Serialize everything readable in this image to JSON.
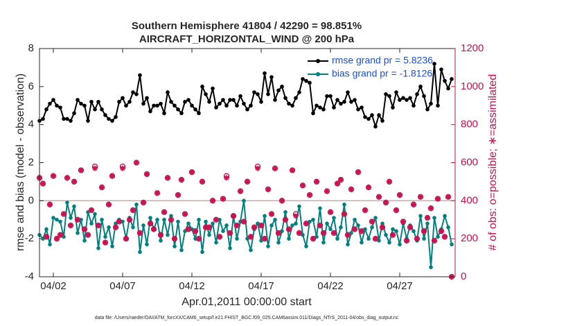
{
  "chart_data": {
    "type": "line",
    "title": "Southern Hemisphere 41804 / 42290 = 98.851%",
    "subtitle": "AIRCRAFT_HORIZONTAL_WIND @ 200 hPa",
    "xlabel": "Apr.01,2011 00:00:00 start",
    "ylabel": "rmse and bias (model - observation)",
    "y2label": "# of obs: o=possible; ∗=assimilated",
    "footnote": "data file: /Users/raeder/DAI/ATM_forcXX/CAM6_setup/f.e21.FHIST_BGC.f09_025.CAM6assim.011/Diags_NTrS_2011-04/obs_diag_output.nc",
    "legend": "upper right",
    "xlim": [
      0,
      30
    ],
    "xticks": [
      {
        "value": 1,
        "label": "04/02"
      },
      {
        "value": 6,
        "label": "04/07"
      },
      {
        "value": 11,
        "label": "04/12"
      },
      {
        "value": 16,
        "label": "04/17"
      },
      {
        "value": 21,
        "label": "04/22"
      },
      {
        "value": 26,
        "label": "04/27"
      }
    ],
    "ylim": [
      -4,
      8
    ],
    "yticks": [
      -4,
      -2,
      0,
      2,
      4,
      6,
      8
    ],
    "y2lim": [
      0,
      1200
    ],
    "y2ticks": [
      0,
      200,
      400,
      600,
      800,
      1000,
      1200
    ],
    "y2color": "#c8104f",
    "x": [
      0,
      0.25,
      0.5,
      0.75,
      1,
      1.25,
      1.5,
      1.75,
      2,
      2.25,
      2.5,
      2.75,
      3,
      3.25,
      3.5,
      3.75,
      4,
      4.25,
      4.5,
      4.75,
      5,
      5.25,
      5.5,
      5.75,
      6,
      6.25,
      6.5,
      6.75,
      7,
      7.25,
      7.5,
      7.75,
      8,
      8.25,
      8.5,
      8.75,
      9,
      9.25,
      9.5,
      9.75,
      10,
      10.25,
      10.5,
      10.75,
      11,
      11.25,
      11.5,
      11.75,
      12,
      12.25,
      12.5,
      12.75,
      13,
      13.25,
      13.5,
      13.75,
      14,
      14.25,
      14.5,
      14.75,
      15,
      15.25,
      15.5,
      15.75,
      16,
      16.25,
      16.5,
      16.75,
      17,
      17.25,
      17.5,
      17.75,
      18,
      18.25,
      18.5,
      18.75,
      19,
      19.25,
      19.5,
      19.75,
      20,
      20.25,
      20.5,
      20.75,
      21,
      21.25,
      21.5,
      21.75,
      22,
      22.25,
      22.5,
      22.75,
      23,
      23.25,
      23.5,
      23.75,
      24,
      24.25,
      24.5,
      24.75,
      25,
      25.25,
      25.5,
      25.75,
      26,
      26.25,
      26.5,
      26.75,
      27,
      27.25,
      27.5,
      27.75,
      28,
      28.25,
      28.5,
      28.75,
      29,
      29.25,
      29.5,
      29.75
    ],
    "series": [
      {
        "name": "rmse grand pr = 5.8236",
        "color": "#000000",
        "marker": "dot",
        "values": [
          4.2,
          4.3,
          4.8,
          5.1,
          5.3,
          5.0,
          4.9,
          4.3,
          4.3,
          4.2,
          4.6,
          5.3,
          5.1,
          5.0,
          4.2,
          5.2,
          4.8,
          5.2,
          4.8,
          4.5,
          4.3,
          4.2,
          4.4,
          5.2,
          5.4,
          5.0,
          5.2,
          5.7,
          5.6,
          6.6,
          5.1,
          5.4,
          4.7,
          5.0,
          5.0,
          5.1,
          4.6,
          5.7,
          5.2,
          5.0,
          4.8,
          4.6,
          5.2,
          5.3,
          5.0,
          4.8,
          4.6,
          6.0,
          5.6,
          5.2,
          5.9,
          4.9,
          5.1,
          5.3,
          5.0,
          5.3,
          5.3,
          5.0,
          5.5,
          5.1,
          4.8,
          5.0,
          5.7,
          5.6,
          5.2,
          6.7,
          5.6,
          6.5,
          5.3,
          5.8,
          6.0,
          5.4,
          5.1,
          5.0,
          5.4,
          5.7,
          6.4,
          6.3,
          6.2,
          4.6,
          5.0,
          4.9,
          4.8,
          5.5,
          5.5,
          4.9,
          5.3,
          5.1,
          5.2,
          5.7,
          5.2,
          5.3,
          4.8,
          4.9,
          4.4,
          4.3,
          4.5,
          3.9,
          4.5,
          4.2,
          5.6,
          5.5,
          4.9,
          5.7,
          5.3,
          5.4,
          5.3,
          5.4,
          5.0,
          5.6,
          6.0,
          5.5,
          4.8,
          5.1,
          7.2,
          5.0,
          6.9,
          6.3,
          5.9,
          6.4
        ]
      },
      {
        "name": "bias grand pr = -1.8126",
        "color": "#008080",
        "marker": "dot",
        "values": [
          -1.8,
          -2.0,
          -1.5,
          -2.3,
          -0.9,
          -1.0,
          -1.1,
          -1.9,
          -0.1,
          -0.9,
          -0.3,
          -1.7,
          -1.0,
          -2.1,
          -0.6,
          -1.2,
          -0.7,
          -2.5,
          -1.0,
          -1.9,
          -1.4,
          -2.4,
          -1.2,
          -1.0,
          -1.1,
          -2.0,
          -0.9,
          -1.4,
          -0.2,
          -2.7,
          -1.3,
          -2.3,
          -0.9,
          -1.5,
          -1.0,
          -2.1,
          -1.0,
          -1.8,
          -0.8,
          -2.4,
          -1.1,
          -2.6,
          -1.6,
          -1.2,
          -1.5,
          -2.0,
          -1.0,
          -2.7,
          -1.1,
          -1.8,
          -1.2,
          -2.2,
          -1.0,
          -1.6,
          -1.3,
          -2.5,
          -0.8,
          -2.0,
          -1.1,
          0.0,
          -2.0,
          -2.6,
          -1.5,
          -1.2,
          -2.1,
          -0.8,
          -2.4,
          -1.3,
          -1.0,
          -2.2,
          -1.6,
          -0.6,
          -2.0,
          -1.3,
          -1.2,
          -0.3,
          -1.8,
          -2.4,
          -1.1,
          -1.0,
          -1.9,
          -0.4,
          -2.2,
          -1.2,
          -1.5,
          -0.9,
          -2.0,
          -1.4,
          -0.2,
          -2.3,
          -1.7,
          -1.0,
          -1.3,
          -2.2,
          -1.5,
          -2.0,
          -1.4,
          -0.9,
          -2.1,
          -1.2,
          -1.8,
          -2.2,
          -1.5,
          -1.6,
          -2.3,
          -1.2,
          -2.0,
          -1.3,
          -1.6,
          -2.1,
          -0.8,
          -2.0,
          -1.2,
          -3.5,
          -0.9,
          -1.9,
          -1.5,
          -0.8,
          -1.4,
          -2.3
        ]
      },
      {
        "name": "possible",
        "color": "#c8104f",
        "marker": "circle",
        "axis": "y2",
        "values": [
          520,
          490,
          210,
          380,
          530,
          200,
          220,
          330,
          520,
          270,
          500,
          300,
          560,
          250,
          220,
          350,
          580,
          270,
          470,
          180,
          380,
          530,
          260,
          290,
          580,
          200,
          300,
          350,
          600,
          230,
          390,
          540,
          280,
          250,
          440,
          220,
          340,
          520,
          300,
          200,
          430,
          510,
          330,
          250,
          550,
          240,
          200,
          500,
          260,
          260,
          400,
          300,
          210,
          410,
          530,
          230,
          320,
          270,
          450,
          290,
          500,
          210,
          260,
          580,
          270,
          200,
          460,
          330,
          570,
          230,
          400,
          300,
          250,
          560,
          330,
          230,
          480,
          280,
          430,
          200,
          500,
          270,
          230,
          450,
          340,
          230,
          490,
          510,
          330,
          220,
          460,
          250,
          550,
          240,
          350,
          470,
          290,
          200,
          420,
          260,
          390,
          500,
          220,
          350,
          430,
          290,
          190,
          260,
          380,
          200,
          420,
          240,
          310,
          360,
          190,
          410,
          240,
          210,
          420,
          0
        ]
      },
      {
        "name": "assimilated",
        "color": "#c8104f",
        "marker": "star",
        "axis": "y2",
        "values": [
          520,
          490,
          210,
          380,
          530,
          200,
          220,
          330,
          520,
          270,
          500,
          300,
          560,
          250,
          220,
          350,
          570,
          270,
          470,
          180,
          380,
          530,
          260,
          290,
          570,
          200,
          300,
          350,
          600,
          230,
          390,
          540,
          280,
          250,
          440,
          220,
          340,
          520,
          300,
          200,
          430,
          510,
          330,
          250,
          550,
          240,
          200,
          500,
          260,
          260,
          400,
          300,
          210,
          410,
          520,
          230,
          320,
          270,
          450,
          290,
          500,
          210,
          260,
          570,
          270,
          200,
          460,
          330,
          570,
          230,
          400,
          300,
          250,
          560,
          320,
          230,
          480,
          280,
          430,
          200,
          500,
          270,
          230,
          450,
          340,
          230,
          490,
          510,
          330,
          220,
          460,
          250,
          550,
          240,
          350,
          470,
          290,
          200,
          420,
          260,
          390,
          500,
          220,
          350,
          430,
          290,
          190,
          260,
          380,
          200,
          420,
          240,
          310,
          360,
          190,
          410,
          240,
          210,
          420,
          0
        ]
      }
    ]
  }
}
